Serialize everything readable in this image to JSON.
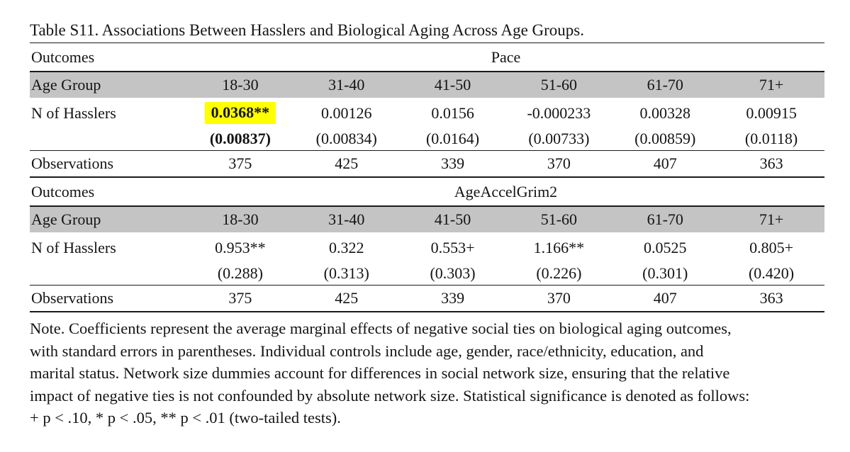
{
  "title": "Table S11. Associations Between Hasslers and Biological Aging Across Age Groups.",
  "colors": {
    "highlight_yellow": "#ffff00",
    "header_gray": "#c4c4c4",
    "rule_black": "#1a1a1a"
  },
  "sections": [
    {
      "outcomes_label": "Outcomes",
      "outcome_name": "Pace",
      "age_group_label": "Age Group",
      "age_groups": [
        "18-30",
        "31-40",
        "41-50",
        "51-60",
        "61-70",
        "71+"
      ],
      "predictor_label": "N of Hasslers",
      "coefficients": [
        "0.0368**",
        "0.00126",
        "0.0156",
        "-0.000233",
        "0.00328",
        "0.00915"
      ],
      "std_errors": [
        "(0.00837)",
        "(0.00834)",
        "(0.0164)",
        "(0.00733)",
        "(0.00859)",
        "(0.0118)"
      ],
      "observations_label": "Observations",
      "observations": [
        "375",
        "425",
        "339",
        "370",
        "407",
        "363"
      ]
    },
    {
      "outcomes_label": "Outcomes",
      "outcome_name": "AgeAccelGrim2",
      "age_group_label": "Age Group",
      "age_groups": [
        "18-30",
        "31-40",
        "41-50",
        "51-60",
        "61-70",
        "71+"
      ],
      "predictor_label": "N of Hasslers",
      "coefficients": [
        "0.953**",
        "0.322",
        "0.553+",
        "1.166**",
        "0.0525",
        "0.805+"
      ],
      "std_errors": [
        "(0.288)",
        "(0.313)",
        "(0.303)",
        "(0.226)",
        "(0.301)",
        "(0.420)"
      ],
      "observations_label": "Observations",
      "observations": [
        "375",
        "425",
        "339",
        "370",
        "407",
        "363"
      ]
    }
  ],
  "note_lines": [
    "Note. Coefficients represent the average marginal effects of negative social ties on biological aging outcomes,",
    "with standard errors in parentheses. Individual controls include age, gender, race/ethnicity, education, and",
    "marital status. Network size dummies account for differences in social network size, ensuring that the relative",
    "impact of negative ties is not confounded by absolute network size. Statistical significance is denoted as follows:",
    "+ p < .10, * p < .05, ** p < .01 (two-tailed tests)."
  ]
}
